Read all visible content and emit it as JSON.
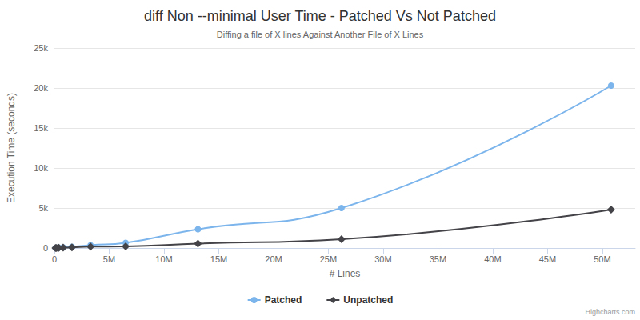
{
  "chart_data": {
    "type": "line",
    "title": "diff Non --minimal User Time - Patched Vs Not Patched",
    "subtitle": "Diffing a file of X lines Against Another File of X Lines",
    "x_label": "# Lines",
    "y_label": "Execution Time (seconds)",
    "credits": "Highcharts.com",
    "x": [
      100000,
      200000,
      400000,
      800000,
      1600000,
      3300000,
      6500000,
      13100000,
      26200000,
      50800000
    ],
    "series": [
      {
        "name": "Patched",
        "color": "#7cb5ec",
        "marker": "circle",
        "line_style": "solid",
        "values": [
          10,
          20,
          40,
          80,
          150,
          350,
          650,
          2350,
          5000,
          20300
        ]
      },
      {
        "name": "Unpatched",
        "color": "#434348",
        "marker": "diamond",
        "line_style": "solid",
        "values": [
          5,
          10,
          20,
          40,
          80,
          170,
          200,
          550,
          1100,
          4800
        ]
      }
    ],
    "xlim": [
      0,
      53000000
    ],
    "xticks": [
      0,
      {
        "value": 5000000,
        "label": "5M"
      },
      {
        "value": 10000000,
        "label": "10M"
      },
      {
        "value": 15000000,
        "label": "15M"
      },
      {
        "value": 20000000,
        "label": "20M"
      },
      {
        "value": 25000000,
        "label": "25M"
      },
      {
        "value": 30000000,
        "label": "30M"
      },
      {
        "value": 35000000,
        "label": "35M"
      },
      {
        "value": 40000000,
        "label": "40M"
      },
      {
        "value": 45000000,
        "label": "45M"
      },
      {
        "value": 50000000,
        "label": "50M"
      }
    ],
    "ylim": [
      0,
      25000
    ],
    "yticks": [
      0,
      {
        "value": 5000,
        "label": "5k"
      },
      {
        "value": 10000,
        "label": "10k"
      },
      {
        "value": 15000,
        "label": "15k"
      },
      {
        "value": 20000,
        "label": "20k"
      },
      {
        "value": 25000,
        "label": "25k"
      }
    ],
    "grid": true,
    "legend": "bottom"
  }
}
